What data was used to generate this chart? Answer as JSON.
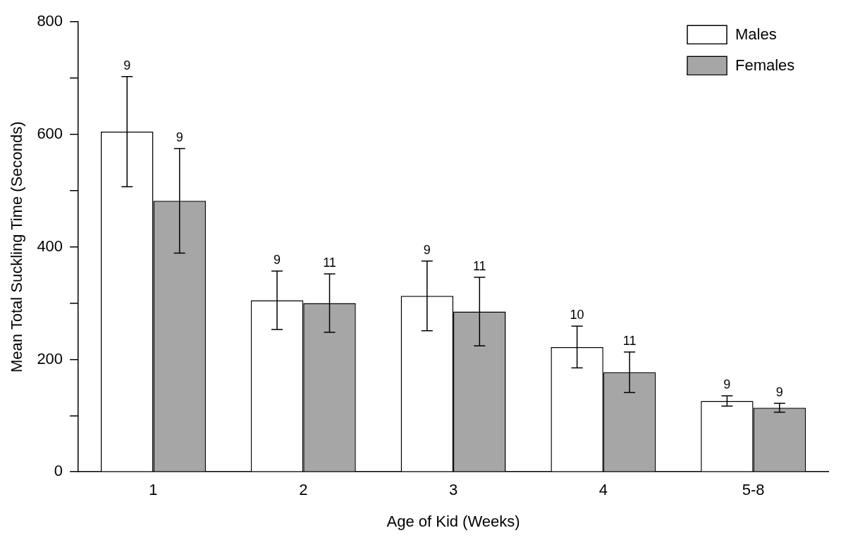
{
  "chart_data": {
    "type": "bar",
    "xlabel": "Age of Kid (Weeks)",
    "ylabel": "Mean Total Suckling Time (Seconds)",
    "categories": [
      "1",
      "2",
      "3",
      "4",
      "5-8"
    ],
    "series": [
      {
        "name": "Males",
        "color": "#ffffff",
        "values": [
          605,
          305,
          313,
          222,
          126
        ],
        "errors": [
          98,
          52,
          62,
          37,
          9
        ]
      },
      {
        "name": "Females",
        "color": "#a6a6a6",
        "values": [
          482,
          300,
          285,
          177,
          114
        ],
        "errors": [
          93,
          52,
          61,
          36,
          8
        ]
      }
    ],
    "annotations": [
      "9",
      "9",
      "9",
      "11",
      "9",
      "11",
      "10",
      "11",
      "9",
      "9"
    ],
    "ylim": [
      0,
      800
    ],
    "yticks": [
      0,
      {
        "value": 100,
        "label": null
      },
      200,
      {
        "value": 300,
        "label": null
      },
      400,
      {
        "value": 500,
        "label": null
      },
      600,
      {
        "value": 700,
        "label": null
      },
      800
    ],
    "grid": false,
    "legend": "top right"
  }
}
